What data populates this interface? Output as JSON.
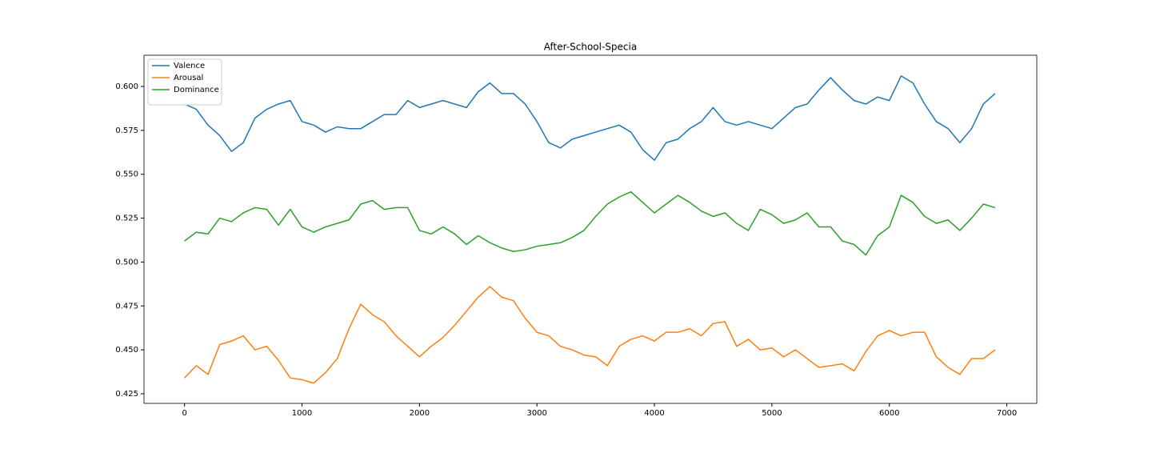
{
  "chart_data": {
    "type": "line",
    "title": "After-School-Specia",
    "x": [
      0,
      100,
      200,
      300,
      400,
      500,
      600,
      700,
      800,
      900,
      1000,
      1100,
      1200,
      1300,
      1400,
      1500,
      1600,
      1700,
      1800,
      1900,
      2000,
      2100,
      2200,
      2300,
      2400,
      2500,
      2600,
      2700,
      2800,
      2900,
      3000,
      3100,
      3200,
      3300,
      3400,
      3500,
      3600,
      3700,
      3800,
      3900,
      4000,
      4100,
      4200,
      4300,
      4400,
      4500,
      4600,
      4700,
      4800,
      4900,
      5000,
      5100,
      5200,
      5300,
      5400,
      5500,
      5600,
      5700,
      5800,
      5900,
      6000,
      6100,
      6200,
      6300,
      6400,
      6500,
      6600,
      6700,
      6800,
      6900
    ],
    "series": [
      {
        "name": "Valence",
        "color": "#1f77b4",
        "values": [
          0.59,
          0.587,
          0.578,
          0.572,
          0.563,
          0.568,
          0.582,
          0.587,
          0.59,
          0.592,
          0.58,
          0.578,
          0.574,
          0.577,
          0.576,
          0.576,
          0.58,
          0.584,
          0.584,
          0.592,
          0.588,
          0.59,
          0.592,
          0.59,
          0.588,
          0.597,
          0.602,
          0.596,
          0.596,
          0.59,
          0.58,
          0.568,
          0.565,
          0.57,
          0.572,
          0.574,
          0.576,
          0.578,
          0.574,
          0.564,
          0.558,
          0.568,
          0.57,
          0.576,
          0.58,
          0.588,
          0.58,
          0.578,
          0.58,
          0.578,
          0.576,
          0.582,
          0.588,
          0.59,
          0.598,
          0.605,
          0.598,
          0.592,
          0.59,
          0.594,
          0.592,
          0.606,
          0.602,
          0.59,
          0.58,
          0.576,
          0.568,
          0.576,
          0.59,
          0.596
        ]
      },
      {
        "name": "Arousal",
        "color": "#ff7f0e",
        "values": [
          0.434,
          0.441,
          0.436,
          0.453,
          0.455,
          0.458,
          0.45,
          0.452,
          0.444,
          0.434,
          0.433,
          0.431,
          0.437,
          0.445,
          0.462,
          0.476,
          0.47,
          0.466,
          0.458,
          0.452,
          0.446,
          0.452,
          0.457,
          0.464,
          0.472,
          0.48,
          0.486,
          0.48,
          0.478,
          0.468,
          0.46,
          0.458,
          0.452,
          0.45,
          0.447,
          0.446,
          0.441,
          0.452,
          0.456,
          0.458,
          0.455,
          0.46,
          0.46,
          0.462,
          0.458,
          0.465,
          0.466,
          0.452,
          0.456,
          0.45,
          0.451,
          0.446,
          0.45,
          0.445,
          0.44,
          0.441,
          0.442,
          0.438,
          0.449,
          0.458,
          0.461,
          0.458,
          0.46,
          0.46,
          0.446,
          0.44,
          0.436,
          0.445,
          0.445,
          0.45
        ]
      },
      {
        "name": "Dominance",
        "color": "#2ca02c",
        "values": [
          0.512,
          0.517,
          0.516,
          0.525,
          0.523,
          0.528,
          0.531,
          0.53,
          0.521,
          0.53,
          0.52,
          0.517,
          0.52,
          0.522,
          0.524,
          0.533,
          0.535,
          0.53,
          0.531,
          0.531,
          0.518,
          0.516,
          0.52,
          0.516,
          0.51,
          0.515,
          0.511,
          0.508,
          0.506,
          0.507,
          0.509,
          0.51,
          0.511,
          0.514,
          0.518,
          0.526,
          0.533,
          0.537,
          0.54,
          0.534,
          0.528,
          0.533,
          0.538,
          0.534,
          0.529,
          0.526,
          0.528,
          0.522,
          0.518,
          0.53,
          0.527,
          0.522,
          0.524,
          0.528,
          0.52,
          0.52,
          0.512,
          0.51,
          0.504,
          0.515,
          0.52,
          0.538,
          0.534,
          0.526,
          0.522,
          0.524,
          0.518,
          0.525,
          0.533,
          0.531
        ]
      }
    ],
    "xlim": [
      -345,
      7255
    ],
    "xticks": [
      0,
      1000,
      2000,
      3000,
      4000,
      5000,
      6000,
      7000
    ],
    "ylim": [
      0.4195,
      0.6178
    ],
    "yticks": [
      0.425,
      {
        "value": 0.45,
        "label": "0.450"
      },
      0.475,
      {
        "value": 0.5,
        "label": "0.500"
      },
      0.525,
      {
        "value": 0.55,
        "label": "0.550"
      },
      0.575,
      {
        "value": 0.6,
        "label": "0.600"
      }
    ],
    "legend": "upper left",
    "grid": false
  }
}
